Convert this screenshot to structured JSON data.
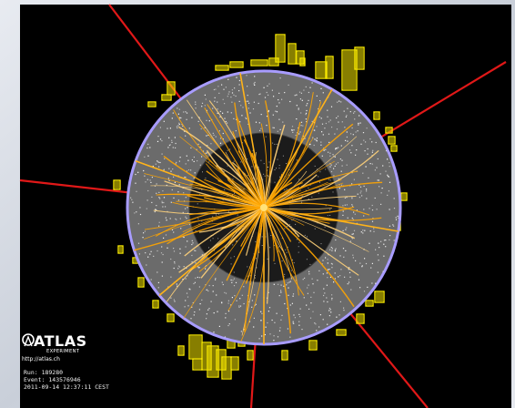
{
  "logo": {
    "name": "ATLAS",
    "subtitle": "EXPERIMENT",
    "url": "http://atlas.ch"
  },
  "event_info": {
    "run": "Run: 189280",
    "event": "Event: 143576946",
    "datetime": "2011-09-14 12:37:11 CEST"
  },
  "colors": {
    "background": "#000000",
    "detector_ring": "#6b6b6b",
    "detector_border": "#a89cff",
    "inner_core": "#1a1a1a",
    "tracks": "#ffa500",
    "hits": "#ffffff",
    "energy_towers": "#f5e600",
    "muon_lines": "#e01818",
    "page_backdrop": "#d9dde6"
  },
  "icons": [
    "atlas-logo-icon"
  ]
}
